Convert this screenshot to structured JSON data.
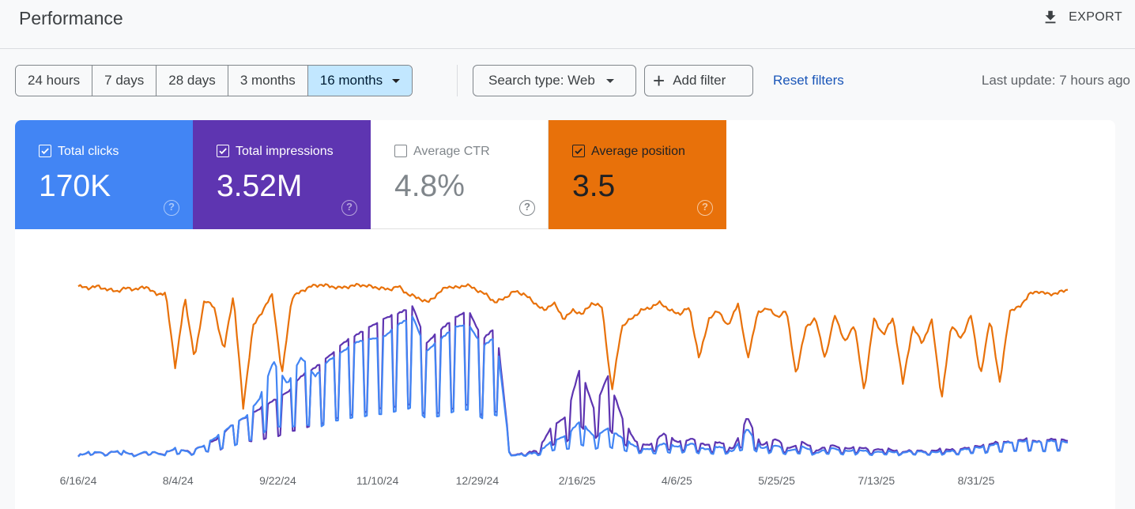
{
  "header": {
    "title": "Performance",
    "export_label": "EXPORT"
  },
  "filters": {
    "date_ranges": [
      {
        "label": "24 hours",
        "active": false
      },
      {
        "label": "7 days",
        "active": false
      },
      {
        "label": "28 days",
        "active": false
      },
      {
        "label": "3 months",
        "active": false
      },
      {
        "label": "16 months",
        "active": true
      }
    ],
    "search_type": "Search type: Web",
    "add_filter": "Add filter",
    "reset_filters": "Reset filters",
    "last_update": "Last update: 7 hours ago"
  },
  "metrics": [
    {
      "label": "Total clicks",
      "value": "170K",
      "checked": true,
      "color": "#4285f4"
    },
    {
      "label": "Total impressions",
      "value": "3.52M",
      "checked": true,
      "color": "#5e35b1"
    },
    {
      "label": "Average CTR",
      "value": "4.8%",
      "checked": false,
      "color": "#ffffff"
    },
    {
      "label": "Average position",
      "value": "3.5",
      "checked": true,
      "color": "#e8710a"
    }
  ],
  "chart_data": {
    "type": "line",
    "x_ticks": [
      "6/16/24",
      "8/4/24",
      "9/22/24",
      "11/10/24",
      "12/29/24",
      "2/16/25",
      "4/6/25",
      "5/25/25",
      "7/13/25",
      "8/31/25"
    ],
    "grid": false,
    "series": [
      {
        "name": "Average position",
        "color": "#e8710a",
        "note": "approximate relative level 0-1 (1=top of plot)",
        "values": [
          0.95,
          0.94,
          0.95,
          0.93,
          0.92,
          0.94,
          0.93,
          0.95,
          0.9,
          0.91,
          0.45,
          0.88,
          0.5,
          0.87,
          0.82,
          0.55,
          0.9,
          0.2,
          0.7,
          0.8,
          0.9,
          0.4,
          0.88,
          0.92,
          0.95,
          0.96,
          0.95,
          0.94,
          0.95,
          0.96,
          0.95,
          0.94,
          0.93,
          0.95,
          0.9,
          0.88,
          0.85,
          0.9,
          0.95,
          0.94,
          0.96,
          0.93,
          0.9,
          0.85,
          0.88,
          0.92,
          0.9,
          0.85,
          0.8,
          0.85,
          0.75,
          0.8,
          0.78,
          0.85,
          0.82,
          0.3,
          0.7,
          0.75,
          0.8,
          0.82,
          0.85,
          0.8,
          0.78,
          0.82,
          0.5,
          0.75,
          0.8,
          0.7,
          0.85,
          0.5,
          0.78,
          0.82,
          0.76,
          0.8,
          0.4,
          0.7,
          0.75,
          0.5,
          0.78,
          0.6,
          0.72,
          0.3,
          0.75,
          0.65,
          0.76,
          0.35,
          0.7,
          0.6,
          0.74,
          0.25,
          0.72,
          0.62,
          0.78,
          0.4,
          0.75,
          0.35,
          0.8,
          0.82,
          0.9,
          0.92,
          0.9,
          0.91,
          0.93
        ]
      },
      {
        "name": "Total impressions",
        "color": "#5e35b1",
        "note": "approximate relative level 0-1",
        "values": [
          0.02,
          0.04,
          0.03,
          0.05,
          0.02,
          0.04,
          0.03,
          0.06,
          0.04,
          0.08,
          0.12,
          0.2,
          0.25,
          0.3,
          0.35,
          0.4,
          0.5,
          0.55,
          0.62,
          0.7,
          0.75,
          0.8,
          0.85,
          0.88,
          0.92,
          0.7,
          0.78,
          0.85,
          0.9,
          0.72,
          0.8,
          0.02,
          0.03,
          0.05,
          0.2,
          0.25,
          0.55,
          0.3,
          0.5,
          0.25,
          0.1,
          0.08,
          0.15,
          0.1,
          0.12,
          0.08,
          0.1,
          0.06,
          0.25,
          0.08,
          0.12,
          0.06,
          0.1,
          0.05,
          0.08,
          0.06,
          0.07,
          0.05,
          0.06,
          0.04,
          0.05,
          0.04,
          0.06,
          0.05,
          0.07,
          0.08,
          0.1,
          0.1,
          0.12,
          0.1,
          0.12,
          0.11
        ]
      },
      {
        "name": "Total clicks",
        "color": "#4285f4",
        "note": "approximate relative level 0-1",
        "values": [
          0.02,
          0.05,
          0.03,
          0.06,
          0.02,
          0.05,
          0.03,
          0.07,
          0.04,
          0.09,
          0.15,
          0.22,
          0.28,
          0.4,
          0.65,
          0.5,
          0.68,
          0.55,
          0.66,
          0.72,
          0.78,
          0.8,
          0.82,
          0.9,
          0.95,
          0.72,
          0.8,
          0.88,
          0.9,
          0.75,
          0.82,
          0.02,
          0.03,
          0.04,
          0.12,
          0.15,
          0.25,
          0.15,
          0.2,
          0.14,
          0.08,
          0.06,
          0.1,
          0.08,
          0.1,
          0.06,
          0.08,
          0.05,
          0.2,
          0.07,
          0.09,
          0.05,
          0.08,
          0.04,
          0.07,
          0.05,
          0.06,
          0.04,
          0.05,
          0.04,
          0.05,
          0.04,
          0.05,
          0.05,
          0.07,
          0.08,
          0.1,
          0.11,
          0.12,
          0.11,
          0.12,
          0.11
        ]
      }
    ]
  }
}
